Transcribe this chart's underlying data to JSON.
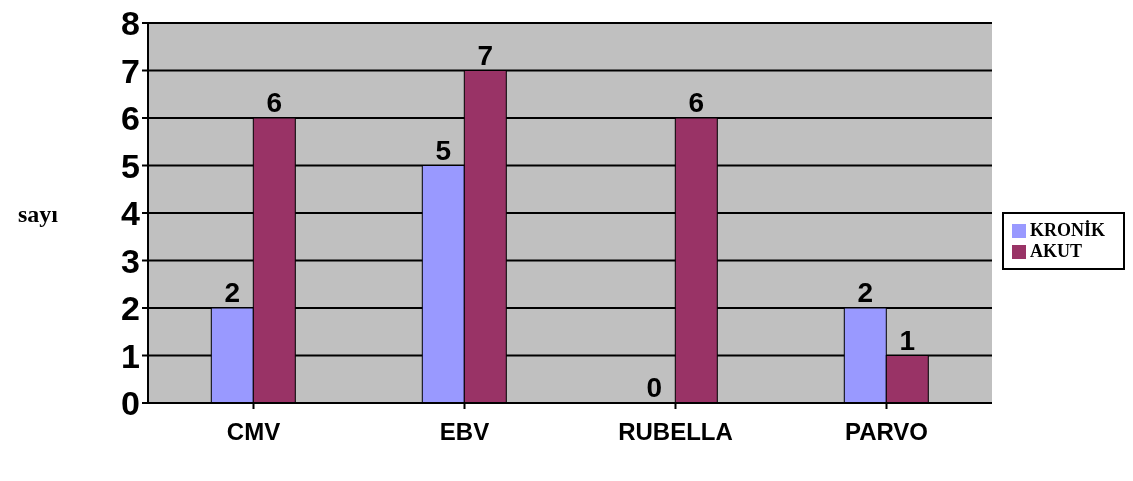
{
  "chart_data": {
    "type": "bar",
    "ylabel": "sayı",
    "categories": [
      "CMV",
      "EBV",
      "RUBELLA",
      "PARVO"
    ],
    "series": [
      {
        "name": "KRONİK",
        "color": "#9999ff",
        "values": [
          2,
          5,
          0,
          2
        ]
      },
      {
        "name": "AKUT",
        "color": "#993366",
        "values": [
          6,
          7,
          6,
          1
        ]
      }
    ],
    "ylim": [
      0,
      8
    ],
    "yticks": [
      0,
      1,
      2,
      3,
      4,
      5,
      6,
      7,
      8
    ],
    "grid": "y",
    "legend": "right",
    "data_labels": true
  }
}
